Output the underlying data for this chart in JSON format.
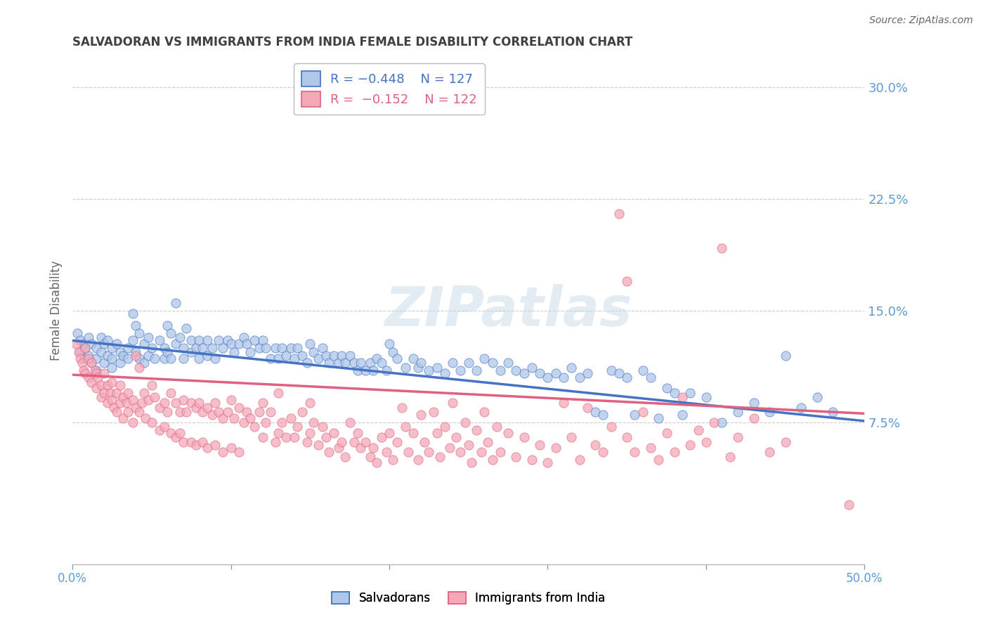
{
  "title": "SALVADORAN VS IMMIGRANTS FROM INDIA FEMALE DISABILITY CORRELATION CHART",
  "source": "Source: ZipAtlas.com",
  "ylabel": "Female Disability",
  "xlim": [
    0.0,
    0.5
  ],
  "ylim": [
    -0.02,
    0.32
  ],
  "yticks": [
    0.075,
    0.15,
    0.225,
    0.3
  ],
  "ytick_labels": [
    "7.5%",
    "15.0%",
    "22.5%",
    "30.0%"
  ],
  "xticks": [
    0.0,
    0.1,
    0.2,
    0.3,
    0.4,
    0.5
  ],
  "xtick_labels": [
    "0.0%",
    "",
    "",
    "",
    "",
    "50.0%"
  ],
  "blue_color": "#aec6e8",
  "pink_color": "#f4a8b8",
  "blue_line_color": "#4472c4",
  "pink_line_color": "#e06080",
  "title_color": "#404040",
  "axis_color": "#5b9bd5",
  "watermark": "ZIPatlas",
  "blue_line": [
    0.13,
    0.076
  ],
  "pink_line": [
    0.107,
    0.081
  ],
  "blue_scatter": [
    [
      0.003,
      0.135
    ],
    [
      0.005,
      0.13
    ],
    [
      0.005,
      0.122
    ],
    [
      0.007,
      0.128
    ],
    [
      0.008,
      0.125
    ],
    [
      0.008,
      0.118
    ],
    [
      0.01,
      0.132
    ],
    [
      0.01,
      0.12
    ],
    [
      0.012,
      0.128
    ],
    [
      0.012,
      0.115
    ],
    [
      0.015,
      0.125
    ],
    [
      0.015,
      0.118
    ],
    [
      0.015,
      0.11
    ],
    [
      0.018,
      0.132
    ],
    [
      0.018,
      0.122
    ],
    [
      0.02,
      0.128
    ],
    [
      0.02,
      0.115
    ],
    [
      0.022,
      0.13
    ],
    [
      0.022,
      0.12
    ],
    [
      0.025,
      0.125
    ],
    [
      0.025,
      0.118
    ],
    [
      0.025,
      0.112
    ],
    [
      0.028,
      0.128
    ],
    [
      0.03,
      0.122
    ],
    [
      0.03,
      0.115
    ],
    [
      0.032,
      0.12
    ],
    [
      0.035,
      0.125
    ],
    [
      0.035,
      0.118
    ],
    [
      0.038,
      0.148
    ],
    [
      0.038,
      0.13
    ],
    [
      0.04,
      0.14
    ],
    [
      0.04,
      0.122
    ],
    [
      0.042,
      0.135
    ],
    [
      0.042,
      0.118
    ],
    [
      0.045,
      0.128
    ],
    [
      0.045,
      0.115
    ],
    [
      0.048,
      0.132
    ],
    [
      0.048,
      0.12
    ],
    [
      0.05,
      0.125
    ],
    [
      0.052,
      0.118
    ],
    [
      0.055,
      0.13
    ],
    [
      0.058,
      0.125
    ],
    [
      0.058,
      0.118
    ],
    [
      0.06,
      0.14
    ],
    [
      0.06,
      0.122
    ],
    [
      0.062,
      0.135
    ],
    [
      0.062,
      0.118
    ],
    [
      0.065,
      0.155
    ],
    [
      0.065,
      0.128
    ],
    [
      0.068,
      0.132
    ],
    [
      0.07,
      0.125
    ],
    [
      0.07,
      0.118
    ],
    [
      0.072,
      0.138
    ],
    [
      0.075,
      0.13
    ],
    [
      0.075,
      0.122
    ],
    [
      0.078,
      0.125
    ],
    [
      0.08,
      0.13
    ],
    [
      0.08,
      0.118
    ],
    [
      0.082,
      0.125
    ],
    [
      0.085,
      0.13
    ],
    [
      0.085,
      0.12
    ],
    [
      0.088,
      0.125
    ],
    [
      0.09,
      0.118
    ],
    [
      0.092,
      0.13
    ],
    [
      0.095,
      0.125
    ],
    [
      0.098,
      0.13
    ],
    [
      0.1,
      0.128
    ],
    [
      0.102,
      0.122
    ],
    [
      0.105,
      0.128
    ],
    [
      0.108,
      0.132
    ],
    [
      0.11,
      0.128
    ],
    [
      0.112,
      0.122
    ],
    [
      0.115,
      0.13
    ],
    [
      0.118,
      0.125
    ],
    [
      0.12,
      0.13
    ],
    [
      0.122,
      0.125
    ],
    [
      0.125,
      0.118
    ],
    [
      0.128,
      0.125
    ],
    [
      0.13,
      0.118
    ],
    [
      0.132,
      0.125
    ],
    [
      0.135,
      0.12
    ],
    [
      0.138,
      0.125
    ],
    [
      0.14,
      0.118
    ],
    [
      0.142,
      0.125
    ],
    [
      0.145,
      0.12
    ],
    [
      0.148,
      0.115
    ],
    [
      0.15,
      0.128
    ],
    [
      0.152,
      0.122
    ],
    [
      0.155,
      0.118
    ],
    [
      0.158,
      0.125
    ],
    [
      0.16,
      0.12
    ],
    [
      0.162,
      0.115
    ],
    [
      0.165,
      0.12
    ],
    [
      0.168,
      0.115
    ],
    [
      0.17,
      0.12
    ],
    [
      0.172,
      0.115
    ],
    [
      0.175,
      0.12
    ],
    [
      0.178,
      0.115
    ],
    [
      0.18,
      0.11
    ],
    [
      0.182,
      0.115
    ],
    [
      0.185,
      0.11
    ],
    [
      0.188,
      0.115
    ],
    [
      0.19,
      0.11
    ],
    [
      0.192,
      0.118
    ],
    [
      0.195,
      0.115
    ],
    [
      0.198,
      0.11
    ],
    [
      0.2,
      0.128
    ],
    [
      0.202,
      0.122
    ],
    [
      0.205,
      0.118
    ],
    [
      0.21,
      0.112
    ],
    [
      0.215,
      0.118
    ],
    [
      0.218,
      0.112
    ],
    [
      0.22,
      0.115
    ],
    [
      0.225,
      0.11
    ],
    [
      0.23,
      0.112
    ],
    [
      0.235,
      0.108
    ],
    [
      0.24,
      0.115
    ],
    [
      0.245,
      0.11
    ],
    [
      0.25,
      0.115
    ],
    [
      0.255,
      0.11
    ],
    [
      0.26,
      0.118
    ],
    [
      0.265,
      0.115
    ],
    [
      0.27,
      0.11
    ],
    [
      0.275,
      0.115
    ],
    [
      0.28,
      0.11
    ],
    [
      0.285,
      0.108
    ],
    [
      0.29,
      0.112
    ],
    [
      0.295,
      0.108
    ],
    [
      0.3,
      0.105
    ],
    [
      0.305,
      0.108
    ],
    [
      0.31,
      0.105
    ],
    [
      0.315,
      0.112
    ],
    [
      0.32,
      0.105
    ],
    [
      0.325,
      0.108
    ],
    [
      0.33,
      0.082
    ],
    [
      0.335,
      0.08
    ],
    [
      0.34,
      0.11
    ],
    [
      0.345,
      0.108
    ],
    [
      0.35,
      0.105
    ],
    [
      0.355,
      0.08
    ],
    [
      0.36,
      0.11
    ],
    [
      0.365,
      0.105
    ],
    [
      0.37,
      0.078
    ],
    [
      0.375,
      0.098
    ],
    [
      0.38,
      0.095
    ],
    [
      0.385,
      0.08
    ],
    [
      0.39,
      0.095
    ],
    [
      0.4,
      0.092
    ],
    [
      0.41,
      0.075
    ],
    [
      0.42,
      0.082
    ],
    [
      0.43,
      0.088
    ],
    [
      0.44,
      0.082
    ],
    [
      0.45,
      0.12
    ],
    [
      0.46,
      0.085
    ],
    [
      0.47,
      0.092
    ],
    [
      0.48,
      0.082
    ]
  ],
  "pink_scatter": [
    [
      0.002,
      0.128
    ],
    [
      0.004,
      0.122
    ],
    [
      0.005,
      0.118
    ],
    [
      0.006,
      0.115
    ],
    [
      0.007,
      0.11
    ],
    [
      0.008,
      0.108
    ],
    [
      0.008,
      0.125
    ],
    [
      0.01,
      0.118
    ],
    [
      0.01,
      0.105
    ],
    [
      0.012,
      0.115
    ],
    [
      0.012,
      0.102
    ],
    [
      0.014,
      0.11
    ],
    [
      0.015,
      0.108
    ],
    [
      0.015,
      0.098
    ],
    [
      0.016,
      0.105
    ],
    [
      0.018,
      0.1
    ],
    [
      0.018,
      0.092
    ],
    [
      0.02,
      0.108
    ],
    [
      0.02,
      0.095
    ],
    [
      0.022,
      0.1
    ],
    [
      0.022,
      0.088
    ],
    [
      0.024,
      0.095
    ],
    [
      0.025,
      0.102
    ],
    [
      0.025,
      0.09
    ],
    [
      0.026,
      0.085
    ],
    [
      0.028,
      0.095
    ],
    [
      0.028,
      0.082
    ],
    [
      0.03,
      0.1
    ],
    [
      0.03,
      0.088
    ],
    [
      0.032,
      0.092
    ],
    [
      0.032,
      0.078
    ],
    [
      0.034,
      0.088
    ],
    [
      0.035,
      0.095
    ],
    [
      0.035,
      0.082
    ],
    [
      0.038,
      0.09
    ],
    [
      0.038,
      0.075
    ],
    [
      0.04,
      0.12
    ],
    [
      0.04,
      0.085
    ],
    [
      0.042,
      0.112
    ],
    [
      0.042,
      0.082
    ],
    [
      0.044,
      0.088
    ],
    [
      0.045,
      0.095
    ],
    [
      0.046,
      0.078
    ],
    [
      0.048,
      0.09
    ],
    [
      0.05,
      0.1
    ],
    [
      0.05,
      0.075
    ],
    [
      0.052,
      0.092
    ],
    [
      0.055,
      0.085
    ],
    [
      0.055,
      0.07
    ],
    [
      0.058,
      0.088
    ],
    [
      0.058,
      0.072
    ],
    [
      0.06,
      0.082
    ],
    [
      0.062,
      0.095
    ],
    [
      0.062,
      0.068
    ],
    [
      0.065,
      0.088
    ],
    [
      0.065,
      0.065
    ],
    [
      0.068,
      0.082
    ],
    [
      0.068,
      0.068
    ],
    [
      0.07,
      0.09
    ],
    [
      0.07,
      0.062
    ],
    [
      0.072,
      0.082
    ],
    [
      0.075,
      0.088
    ],
    [
      0.075,
      0.062
    ],
    [
      0.078,
      0.085
    ],
    [
      0.078,
      0.06
    ],
    [
      0.08,
      0.088
    ],
    [
      0.082,
      0.082
    ],
    [
      0.082,
      0.062
    ],
    [
      0.085,
      0.085
    ],
    [
      0.085,
      0.058
    ],
    [
      0.088,
      0.08
    ],
    [
      0.09,
      0.088
    ],
    [
      0.09,
      0.06
    ],
    [
      0.092,
      0.082
    ],
    [
      0.095,
      0.078
    ],
    [
      0.095,
      0.055
    ],
    [
      0.098,
      0.082
    ],
    [
      0.1,
      0.09
    ],
    [
      0.1,
      0.058
    ],
    [
      0.102,
      0.078
    ],
    [
      0.105,
      0.085
    ],
    [
      0.105,
      0.055
    ],
    [
      0.108,
      0.075
    ],
    [
      0.11,
      0.082
    ],
    [
      0.112,
      0.078
    ],
    [
      0.115,
      0.072
    ],
    [
      0.118,
      0.082
    ],
    [
      0.12,
      0.088
    ],
    [
      0.12,
      0.065
    ],
    [
      0.122,
      0.075
    ],
    [
      0.125,
      0.082
    ],
    [
      0.128,
      0.062
    ],
    [
      0.13,
      0.095
    ],
    [
      0.13,
      0.068
    ],
    [
      0.132,
      0.075
    ],
    [
      0.135,
      0.065
    ],
    [
      0.138,
      0.078
    ],
    [
      0.14,
      0.065
    ],
    [
      0.142,
      0.072
    ],
    [
      0.145,
      0.082
    ],
    [
      0.148,
      0.062
    ],
    [
      0.15,
      0.088
    ],
    [
      0.15,
      0.068
    ],
    [
      0.152,
      0.075
    ],
    [
      0.155,
      0.06
    ],
    [
      0.158,
      0.072
    ],
    [
      0.16,
      0.065
    ],
    [
      0.162,
      0.055
    ],
    [
      0.165,
      0.068
    ],
    [
      0.168,
      0.058
    ],
    [
      0.17,
      0.062
    ],
    [
      0.172,
      0.052
    ],
    [
      0.175,
      0.075
    ],
    [
      0.178,
      0.062
    ],
    [
      0.18,
      0.068
    ],
    [
      0.182,
      0.058
    ],
    [
      0.185,
      0.062
    ],
    [
      0.188,
      0.052
    ],
    [
      0.19,
      0.058
    ],
    [
      0.192,
      0.048
    ],
    [
      0.195,
      0.065
    ],
    [
      0.198,
      0.055
    ],
    [
      0.2,
      0.068
    ],
    [
      0.202,
      0.05
    ],
    [
      0.205,
      0.062
    ],
    [
      0.208,
      0.085
    ],
    [
      0.21,
      0.072
    ],
    [
      0.212,
      0.055
    ],
    [
      0.215,
      0.068
    ],
    [
      0.218,
      0.05
    ],
    [
      0.22,
      0.08
    ],
    [
      0.222,
      0.062
    ],
    [
      0.225,
      0.055
    ],
    [
      0.228,
      0.082
    ],
    [
      0.23,
      0.068
    ],
    [
      0.232,
      0.052
    ],
    [
      0.235,
      0.072
    ],
    [
      0.238,
      0.058
    ],
    [
      0.24,
      0.088
    ],
    [
      0.242,
      0.065
    ],
    [
      0.245,
      0.055
    ],
    [
      0.248,
      0.075
    ],
    [
      0.25,
      0.06
    ],
    [
      0.252,
      0.048
    ],
    [
      0.255,
      0.07
    ],
    [
      0.258,
      0.055
    ],
    [
      0.26,
      0.082
    ],
    [
      0.262,
      0.062
    ],
    [
      0.265,
      0.05
    ],
    [
      0.268,
      0.072
    ],
    [
      0.27,
      0.055
    ],
    [
      0.275,
      0.068
    ],
    [
      0.28,
      0.052
    ],
    [
      0.285,
      0.065
    ],
    [
      0.29,
      0.05
    ],
    [
      0.295,
      0.06
    ],
    [
      0.3,
      0.048
    ],
    [
      0.305,
      0.058
    ],
    [
      0.31,
      0.088
    ],
    [
      0.315,
      0.065
    ],
    [
      0.32,
      0.05
    ],
    [
      0.325,
      0.085
    ],
    [
      0.33,
      0.06
    ],
    [
      0.335,
      0.055
    ],
    [
      0.34,
      0.072
    ],
    [
      0.345,
      0.215
    ],
    [
      0.35,
      0.065
    ],
    [
      0.355,
      0.055
    ],
    [
      0.36,
      0.082
    ],
    [
      0.365,
      0.058
    ],
    [
      0.37,
      0.05
    ],
    [
      0.375,
      0.068
    ],
    [
      0.38,
      0.055
    ],
    [
      0.385,
      0.092
    ],
    [
      0.39,
      0.06
    ],
    [
      0.395,
      0.07
    ],
    [
      0.4,
      0.062
    ],
    [
      0.405,
      0.075
    ],
    [
      0.41,
      0.192
    ],
    [
      0.415,
      0.052
    ],
    [
      0.42,
      0.065
    ],
    [
      0.43,
      0.078
    ],
    [
      0.44,
      0.055
    ],
    [
      0.45,
      0.062
    ],
    [
      0.35,
      0.17
    ],
    [
      0.49,
      0.02
    ]
  ]
}
